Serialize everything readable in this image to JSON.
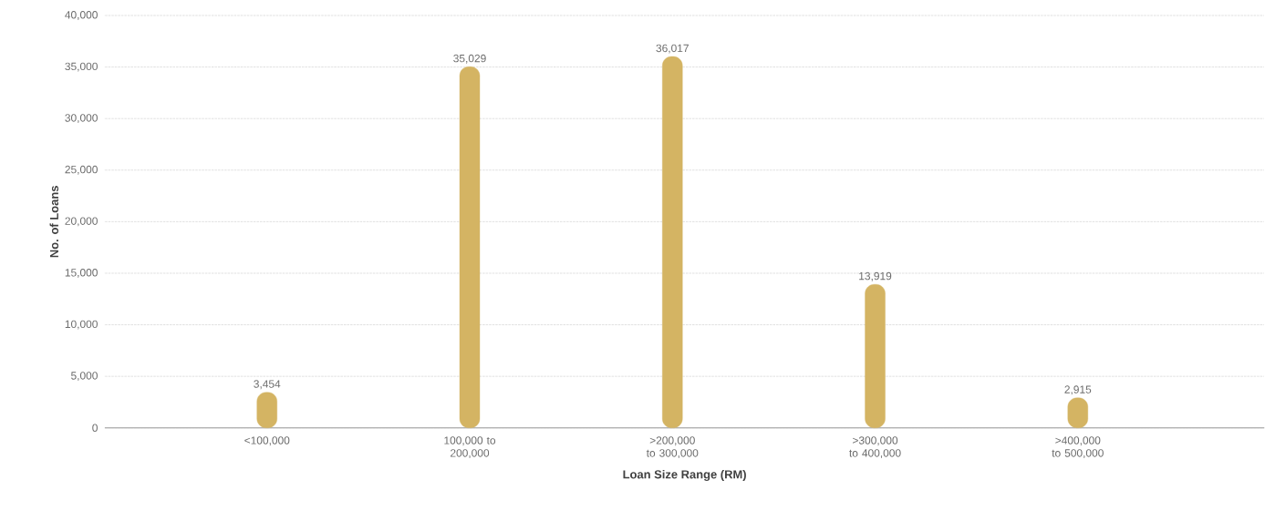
{
  "chart_data": {
    "type": "bar",
    "xlabel": "Loan Size Range (RM)",
    "ylabel": "No. of Loans",
    "categories": [
      "<100,000",
      "100,000 to 200,000",
      ">200,000 to 300,000",
      ">300,000 to 400,000",
      ">400,000 to 500,000"
    ],
    "values": [
      3454,
      35029,
      36017,
      13919,
      2915
    ],
    "value_labels": [
      "3,454",
      "35,029",
      "36,017",
      "13,919",
      "2,915"
    ],
    "color": "#d4b463",
    "ylim": [
      0,
      40000
    ],
    "yticks": [
      0,
      {
        "value": 5000,
        "label": "5,000"
      },
      {
        "value": 10000,
        "label": "10,000"
      },
      {
        "value": 15000,
        "label": "15,000"
      },
      {
        "value": 20000,
        "label": "20,000"
      },
      {
        "value": 25000,
        "label": "25,000"
      },
      {
        "value": 30000,
        "label": "30,000"
      },
      {
        "value": 35000,
        "label": "35,000"
      },
      {
        "value": 40000,
        "label": "40,000"
      }
    ],
    "grid": "y"
  }
}
